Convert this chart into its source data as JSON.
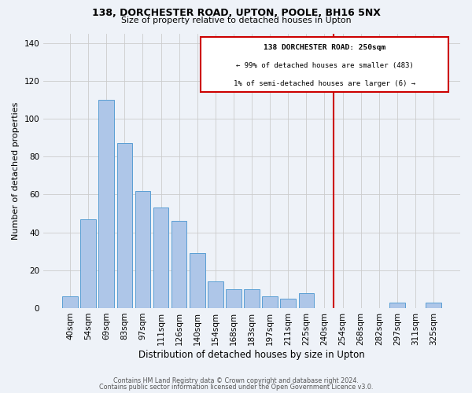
{
  "title1": "138, DORCHESTER ROAD, UPTON, POOLE, BH16 5NX",
  "title2": "Size of property relative to detached houses in Upton",
  "xlabel": "Distribution of detached houses by size in Upton",
  "ylabel": "Number of detached properties",
  "bar_labels": [
    "40sqm",
    "54sqm",
    "69sqm",
    "83sqm",
    "97sqm",
    "111sqm",
    "126sqm",
    "140sqm",
    "154sqm",
    "168sqm",
    "183sqm",
    "197sqm",
    "211sqm",
    "225sqm",
    "240sqm",
    "254sqm",
    "268sqm",
    "282sqm",
    "297sqm",
    "311sqm",
    "325sqm"
  ],
  "bar_values": [
    6,
    47,
    110,
    87,
    62,
    53,
    46,
    29,
    14,
    10,
    10,
    6,
    5,
    8,
    0,
    0,
    0,
    0,
    3,
    0,
    3
  ],
  "bar_color": "#aec6e8",
  "bar_edge_color": "#5a9fd4",
  "vline_color": "#cc0000",
  "box_text_line1": "138 DORCHESTER ROAD: 250sqm",
  "box_text_line2": "← 99% of detached houses are smaller (483)",
  "box_text_line3": "1% of semi-detached houses are larger (6) →",
  "box_color": "#cc0000",
  "box_fill": "#ffffff",
  "ylim": [
    0,
    145
  ],
  "yticks": [
    0,
    20,
    40,
    60,
    80,
    100,
    120,
    140
  ],
  "grid_color": "#cccccc",
  "bg_color": "#eef2f8",
  "footer_line1": "Contains HM Land Registry data © Crown copyright and database right 2024.",
  "footer_line2": "Contains public sector information licensed under the Open Government Licence v3.0."
}
